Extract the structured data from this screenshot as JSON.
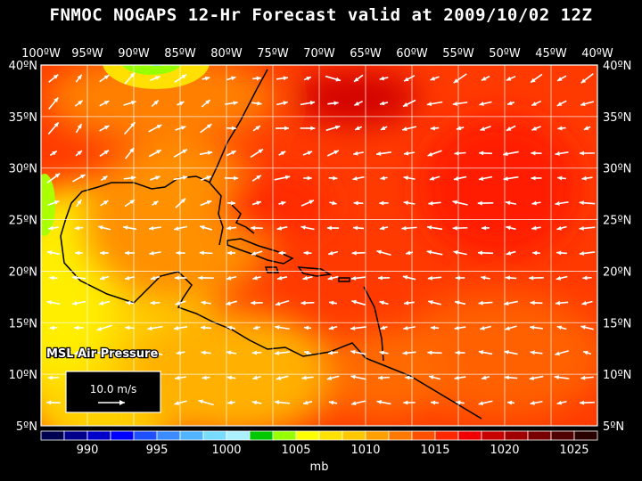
{
  "title": "FNMOC NOGAPS 12-Hr Forecast valid at 2009/10/02 12Z",
  "map": {
    "lon_labels": [
      "100ºW",
      "95ºW",
      "90ºW",
      "85ºW",
      "80ºW",
      "75ºW",
      "70ºW",
      "65ºW",
      "60ºW",
      "55ºW",
      "50ºW",
      "45ºW",
      "40ºW"
    ],
    "lat_labels": [
      "40ºN",
      "35ºN",
      "30ºN",
      "25ºN",
      "20ºN",
      "15ºN",
      "10ºN",
      "5ºN"
    ],
    "lon_range": [
      -100,
      -40
    ],
    "lat_range": [
      5,
      40
    ],
    "field_label": "MSL Air Pressure",
    "vector_legend": "10.0 m/s"
  },
  "colorbar": {
    "labels": [
      "990",
      "995",
      "1000",
      "1005",
      "1010",
      "1015",
      "1020",
      "1025"
    ],
    "unit": "mb",
    "colors": [
      "#000050",
      "#00008c",
      "#0000c8",
      "#0000ff",
      "#1e50ff",
      "#3c8cff",
      "#50b4ff",
      "#78dcff",
      "#aaf0ff",
      "#00c800",
      "#96ff00",
      "#ffff00",
      "#ffe100",
      "#ffc800",
      "#ffa000",
      "#ff7800",
      "#ff5000",
      "#ff2800",
      "#f00000",
      "#c80000",
      "#a00000",
      "#780000",
      "#500000",
      "#280000"
    ]
  }
}
